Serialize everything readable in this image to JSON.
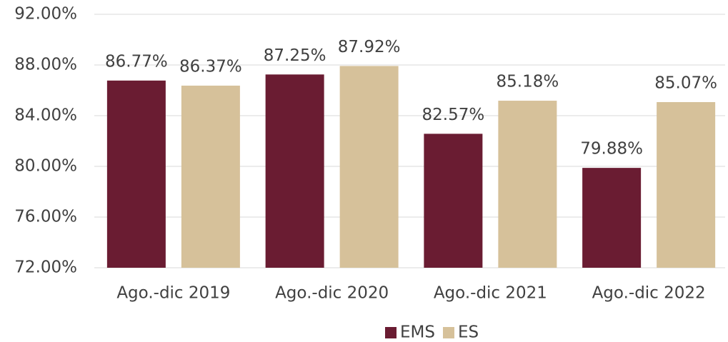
{
  "chart_data": {
    "type": "bar",
    "categories": [
      "Ago.-dic 2019",
      "Ago.-dic 2020",
      "Ago.-dic 2021",
      "Ago.-dic 2022"
    ],
    "series": [
      {
        "name": "EMS",
        "color": "#6a1c32",
        "values": [
          86.77,
          87.25,
          82.57,
          79.88
        ],
        "value_labels": [
          "86.77%",
          "87.25%",
          "82.57%",
          "79.88%"
        ]
      },
      {
        "name": "ES",
        "color": "#d6c19a",
        "values": [
          86.37,
          87.92,
          85.18,
          85.07
        ],
        "value_labels": [
          "86.37%",
          "87.92%",
          "85.18%",
          "85.07%"
        ]
      }
    ],
    "ylim": [
      72,
      92
    ],
    "yticks": [
      {
        "value": 72,
        "label": "72.00%"
      },
      {
        "value": 76,
        "label": "76.00%"
      },
      {
        "value": 80,
        "label": "80.00%"
      },
      {
        "value": 84,
        "label": "84.00%"
      },
      {
        "value": 88,
        "label": "88.00%"
      },
      {
        "value": 92,
        "label": "92.00%"
      }
    ],
    "grid": true,
    "legend": "bottom"
  }
}
